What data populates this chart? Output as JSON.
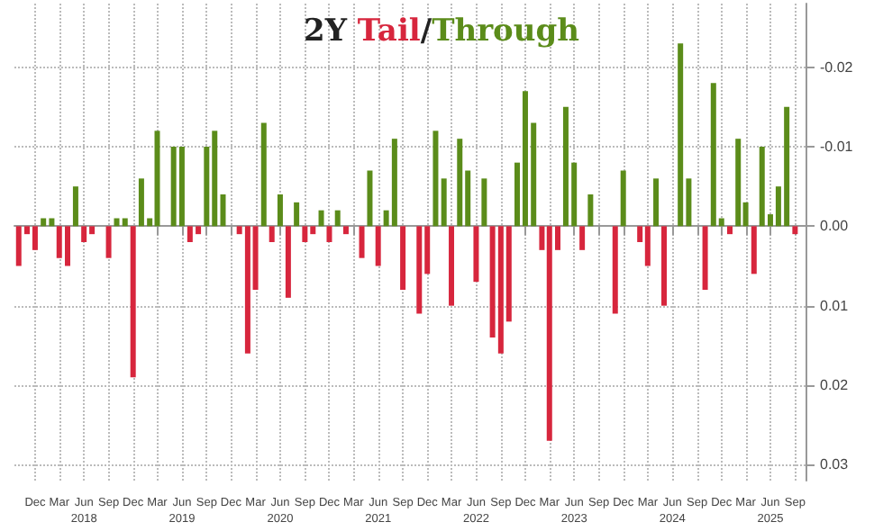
{
  "chart_data": {
    "type": "bar",
    "title": "2Y Tail/Through",
    "x": [
      "2017-10",
      "2017-11",
      "2017-12",
      "2018-01",
      "2018-02",
      "2018-03",
      "2018-04",
      "2018-05",
      "2018-06",
      "2018-07",
      "2018-08",
      "2018-09",
      "2018-10",
      "2018-11",
      "2018-12",
      "2019-01",
      "2019-02",
      "2019-03",
      "2019-04",
      "2019-05",
      "2019-06",
      "2019-07",
      "2019-08",
      "2019-09",
      "2019-10",
      "2019-11",
      "2019-12",
      "2020-01",
      "2020-02",
      "2020-03",
      "2020-04",
      "2020-05",
      "2020-06",
      "2020-07",
      "2020-08",
      "2020-09",
      "2020-10",
      "2020-11",
      "2020-12",
      "2021-01",
      "2021-02",
      "2021-03",
      "2021-04",
      "2021-05",
      "2021-06",
      "2021-07",
      "2021-08",
      "2021-09",
      "2021-10",
      "2021-11",
      "2021-12",
      "2022-01",
      "2022-02",
      "2022-03",
      "2022-04",
      "2022-05",
      "2022-06",
      "2022-07",
      "2022-08",
      "2022-09",
      "2022-10",
      "2022-11",
      "2022-12",
      "2023-01",
      "2023-02",
      "2023-03",
      "2023-04",
      "2023-05",
      "2023-06",
      "2023-07",
      "2023-08",
      "2023-09",
      "2023-10",
      "2023-11",
      "2023-12",
      "2024-01",
      "2024-02",
      "2024-03",
      "2024-04",
      "2024-05",
      "2024-06",
      "2024-07",
      "2024-08",
      "2024-09",
      "2024-10",
      "2024-11",
      "2024-12",
      "2025-01",
      "2025-02",
      "2025-03",
      "2025-04",
      "2025-05",
      "2025-06",
      "2025-07",
      "2025-08",
      "2025-09"
    ],
    "series": [
      {
        "color": "#d7263d",
        "values": [
          0.005,
          0.001,
          0.003,
          null,
          null,
          0.004,
          0.005,
          null,
          0.002,
          0.001,
          0,
          0.004,
          null,
          null,
          0.019,
          null,
          null,
          null,
          0,
          null,
          null,
          0.002,
          0.001,
          null,
          null,
          null,
          0,
          0.001,
          0.016,
          0.008,
          null,
          0.002,
          null,
          0.009,
          null,
          0.002,
          0.001,
          null,
          0.002,
          null,
          0.001,
          0,
          0.004,
          null,
          0.005,
          null,
          null,
          0.008,
          0,
          0.011,
          0.006,
          null,
          null,
          0.01,
          null,
          null,
          0.007,
          null,
          0.014,
          0.016,
          0.012,
          null,
          null,
          null,
          0.003,
          0.027,
          0.003,
          null,
          null,
          0.003,
          null,
          0,
          0,
          0.011,
          null,
          0,
          0.002,
          0.005,
          null,
          0.01,
          0,
          null,
          null,
          0,
          0.008,
          null,
          null,
          0.001,
          null,
          null,
          0.006,
          null,
          null,
          null,
          null,
          0.001
        ]
      },
      {
        "color": "#5b8c1a",
        "values": [
          null,
          null,
          null,
          -0.001,
          -0.001,
          null,
          null,
          -0.005,
          null,
          null,
          null,
          null,
          -0.001,
          -0.001,
          null,
          -0.006,
          -0.001,
          -0.012,
          null,
          -0.01,
          -0.01,
          null,
          null,
          -0.01,
          -0.012,
          -0.004,
          null,
          null,
          null,
          null,
          -0.013,
          null,
          -0.004,
          null,
          -0.003,
          null,
          null,
          -0.002,
          null,
          -0.002,
          null,
          null,
          null,
          -0.007,
          null,
          -0.002,
          -0.011,
          null,
          null,
          null,
          null,
          -0.012,
          -0.006,
          null,
          -0.011,
          -0.007,
          null,
          -0.006,
          null,
          null,
          null,
          -0.008,
          -0.017,
          -0.013,
          null,
          null,
          null,
          -0.015,
          -0.008,
          null,
          -0.004,
          null,
          null,
          null,
          -0.007,
          null,
          null,
          null,
          -0.006,
          null,
          null,
          -0.023,
          -0.006,
          null,
          null,
          -0.018,
          -0.001,
          null,
          -0.011,
          -0.003,
          null,
          -0.01,
          -0.0015,
          -0.005,
          -0.015,
          null
        ]
      }
    ],
    "xlim": [
      "2017-09-15",
      "2025-10-10"
    ],
    "xticks": [
      {
        "value": "2017-12",
        "label": "Dec"
      },
      {
        "value": "2018-03",
        "label": "Mar"
      },
      {
        "value": "2018-06",
        "label": "Jun\n2018"
      },
      {
        "value": "2018-09",
        "label": "Sep"
      },
      {
        "value": "2018-12",
        "label": "Dec"
      },
      {
        "value": "2019-03",
        "label": "Mar"
      },
      {
        "value": "2019-06",
        "label": "Jun\n2019"
      },
      {
        "value": "2019-09",
        "label": "Sep"
      },
      {
        "value": "2019-12",
        "label": "Dec"
      },
      {
        "value": "2020-03",
        "label": "Mar"
      },
      {
        "value": "2020-06",
        "label": "Jun\n2020"
      },
      {
        "value": "2020-09",
        "label": "Sep"
      },
      {
        "value": "2020-12",
        "label": "Dec"
      },
      {
        "value": "2021-03",
        "label": "Mar"
      },
      {
        "value": "2021-06",
        "label": "Jun\n2021"
      },
      {
        "value": "2021-09",
        "label": "Sep"
      },
      {
        "value": "2021-12",
        "label": "Dec"
      },
      {
        "value": "2022-03",
        "label": "Mar"
      },
      {
        "value": "2022-06",
        "label": "Jun\n2022"
      },
      {
        "value": "2022-09",
        "label": "Sep"
      },
      {
        "value": "2022-12",
        "label": "Dec"
      },
      {
        "value": "2023-03",
        "label": "Mar"
      },
      {
        "value": "2023-06",
        "label": "Jun\n2023"
      },
      {
        "value": "2023-09",
        "label": "Sep"
      },
      {
        "value": "2023-12",
        "label": "Dec"
      },
      {
        "value": "2024-03",
        "label": "Mar"
      },
      {
        "value": "2024-06",
        "label": "Jun\n2024"
      },
      {
        "value": "2024-09",
        "label": "Sep"
      },
      {
        "value": "2024-12",
        "label": "Dec"
      },
      {
        "value": "2025-03",
        "label": "Mar"
      },
      {
        "value": "2025-06",
        "label": "Jun\n2025"
      },
      {
        "value": "2025-09",
        "label": "Sep"
      }
    ],
    "ylim": [
      0.032,
      -0.028
    ],
    "yticks": [
      -0.02,
      -0.01,
      {
        "value": 0,
        "label": "0.00"
      },
      0.01,
      0.02,
      0.03
    ],
    "grid": true
  }
}
